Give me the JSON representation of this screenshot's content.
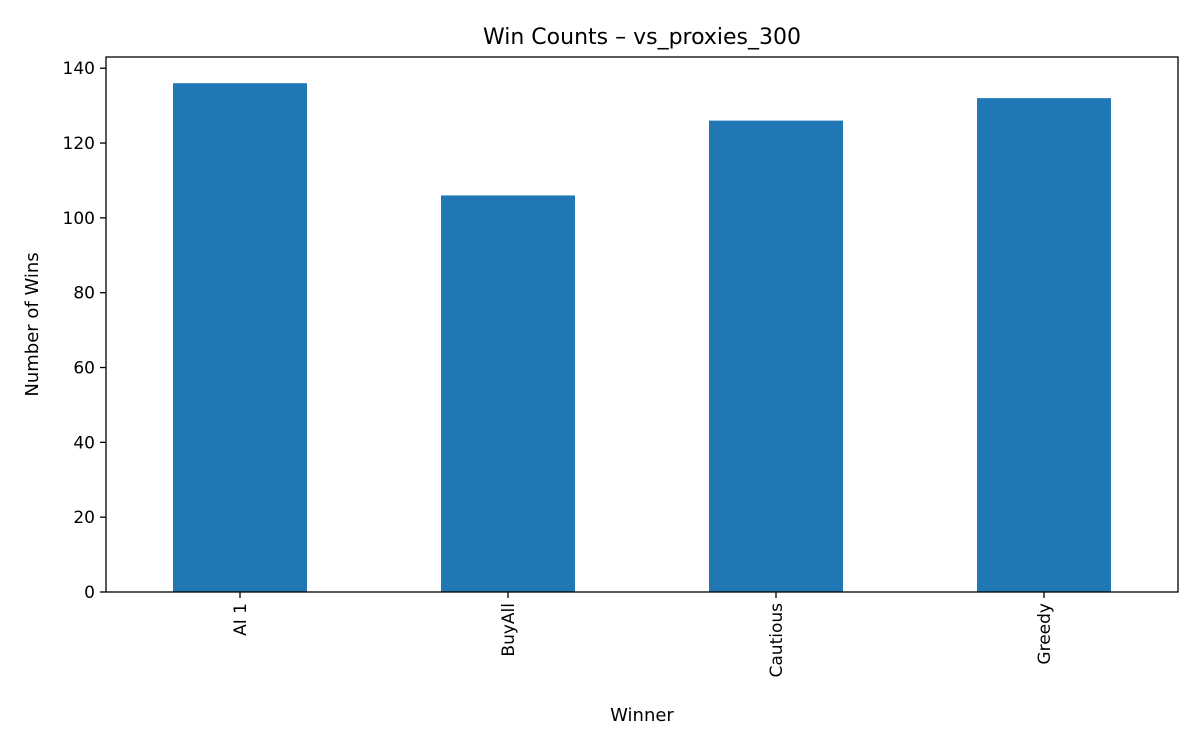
{
  "chart_data": {
    "type": "bar",
    "title": "Win Counts – vs_proxies_300",
    "xlabel": "Winner",
    "ylabel": "Number of Wins",
    "categories": [
      "AI 1",
      "BuyAll",
      "Cautious",
      "Greedy"
    ],
    "values": [
      136,
      106,
      126,
      132
    ],
    "ylim": [
      0,
      143
    ],
    "yticks": [
      0,
      20,
      40,
      60,
      80,
      100,
      120,
      140
    ],
    "bar_color": "#1f77b4",
    "grid": false,
    "legend": "none"
  }
}
